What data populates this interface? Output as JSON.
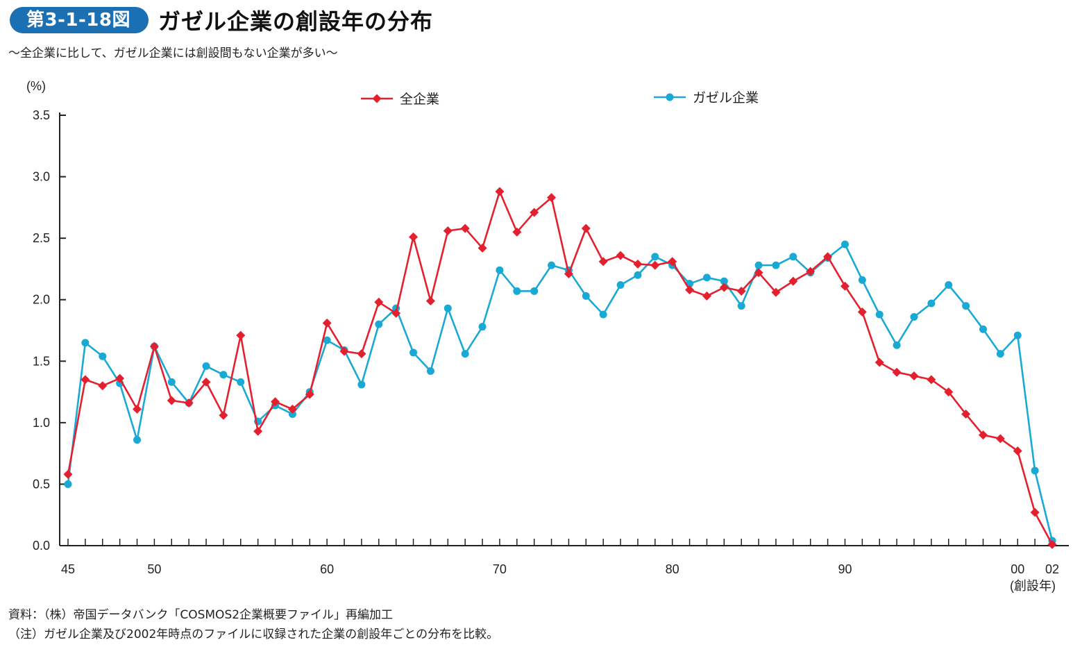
{
  "header": {
    "badge": "第3-1-18図",
    "title": "ガゼル企業の創設年の分布",
    "subtitle": "～全企業に比して、ガゼル企業には創設間もない企業が多い～"
  },
  "chart_data": {
    "type": "line",
    "ylabel": "(%)",
    "xlabel": "(創設年)",
    "ylim": [
      0,
      3.5
    ],
    "y_ticks": [
      "0.0",
      "0.5",
      "1.0",
      "1.5",
      "2.0",
      "2.5",
      "3.0",
      "3.5"
    ],
    "x_tick_labels": [
      {
        "year": 1945,
        "label": "45"
      },
      {
        "year": 1950,
        "label": "50"
      },
      {
        "year": 1960,
        "label": "60"
      },
      {
        "year": 1970,
        "label": "70"
      },
      {
        "year": 1980,
        "label": "80"
      },
      {
        "year": 1990,
        "label": "90"
      },
      {
        "year": 2000,
        "label": "00"
      },
      {
        "year": 2002,
        "label": "02"
      }
    ],
    "x": [
      1945,
      1946,
      1947,
      1948,
      1949,
      1950,
      1951,
      1952,
      1953,
      1954,
      1955,
      1956,
      1957,
      1958,
      1959,
      1960,
      1961,
      1962,
      1963,
      1964,
      1965,
      1966,
      1967,
      1968,
      1969,
      1970,
      1971,
      1972,
      1973,
      1974,
      1975,
      1976,
      1977,
      1978,
      1979,
      1980,
      1981,
      1982,
      1983,
      1984,
      1985,
      1986,
      1987,
      1988,
      1989,
      1990,
      1991,
      1992,
      1993,
      1994,
      1995,
      1996,
      1997,
      1998,
      1999,
      2000,
      2001,
      2002
    ],
    "legend_position": "top",
    "series": [
      {
        "name": "全企業",
        "color": "#e5202e",
        "marker": "diamond",
        "values": [
          0.58,
          1.35,
          1.3,
          1.36,
          1.11,
          1.62,
          1.18,
          1.16,
          1.33,
          1.06,
          1.71,
          0.93,
          1.17,
          1.11,
          1.23,
          1.81,
          1.58,
          1.56,
          1.98,
          1.89,
          2.51,
          1.99,
          2.56,
          2.58,
          2.42,
          2.88,
          2.55,
          2.71,
          2.83,
          2.21,
          2.58,
          2.31,
          2.36,
          2.29,
          2.28,
          2.31,
          2.08,
          2.03,
          2.1,
          2.07,
          2.22,
          2.06,
          2.15,
          2.23,
          2.35,
          2.11,
          1.9,
          1.49,
          1.41,
          1.38,
          1.35,
          1.25,
          1.07,
          0.9,
          0.87,
          0.77,
          0.27,
          0.01
        ]
      },
      {
        "name": "ガゼル企業",
        "color": "#19a9d5",
        "marker": "circle",
        "values": [
          0.5,
          1.65,
          1.54,
          1.32,
          0.86,
          1.62,
          1.33,
          1.16,
          1.46,
          1.39,
          1.33,
          1.01,
          1.14,
          1.07,
          1.25,
          1.67,
          1.59,
          1.31,
          1.8,
          1.93,
          1.57,
          1.42,
          1.93,
          1.56,
          1.78,
          2.24,
          2.07,
          2.07,
          2.28,
          2.24,
          2.03,
          1.88,
          2.12,
          2.2,
          2.35,
          2.28,
          2.13,
          2.18,
          2.15,
          1.95,
          2.28,
          2.28,
          2.35,
          2.22,
          2.34,
          2.45,
          2.16,
          1.88,
          1.63,
          1.86,
          1.97,
          2.12,
          1.95,
          1.76,
          1.56,
          1.71,
          0.61,
          0.04
        ]
      }
    ]
  },
  "notes": {
    "source": "資料：（株）帝国データバンク「COSMOS2企業概要ファイル」再編加工",
    "note": "（注）ガゼル企業及び2002年時点のファイルに収録された企業の創設年ごとの分布を比較。"
  }
}
